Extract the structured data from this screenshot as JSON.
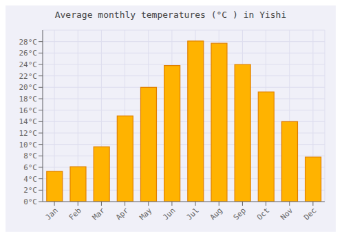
{
  "chart_data": {
    "type": "bar",
    "title": "Average monthly temperatures (°C ) in Yishi",
    "categories": [
      "Jan",
      "Feb",
      "Mar",
      "Apr",
      "May",
      "Jun",
      "Jul",
      "Aug",
      "Sep",
      "Oct",
      "Nov",
      "Dec"
    ],
    "values": [
      5.3,
      6.1,
      9.6,
      15.0,
      20.0,
      23.8,
      28.1,
      27.7,
      24.0,
      19.2,
      14.0,
      7.8
    ],
    "color": "#FFB300",
    "ylim": [
      0,
      30
    ],
    "yticks": [
      {
        "value": 0,
        "label": "0°C"
      },
      {
        "value": 2,
        "label": "2°C"
      },
      {
        "value": 4,
        "label": "4°C"
      },
      {
        "value": 6,
        "label": "6°C"
      },
      {
        "value": 8,
        "label": "8°C"
      },
      {
        "value": 10,
        "label": "10°C"
      },
      {
        "value": 12,
        "label": "12°C"
      },
      {
        "value": 14,
        "label": "14°C"
      },
      {
        "value": 16,
        "label": "16°C"
      },
      {
        "value": 18,
        "label": "18°C"
      },
      {
        "value": 20,
        "label": "20°C"
      },
      {
        "value": 22,
        "label": "22°C"
      },
      {
        "value": 24,
        "label": "24°C"
      },
      {
        "value": 26,
        "label": "26°C"
      },
      {
        "value": 28,
        "label": "28°C"
      }
    ],
    "grid": true
  }
}
